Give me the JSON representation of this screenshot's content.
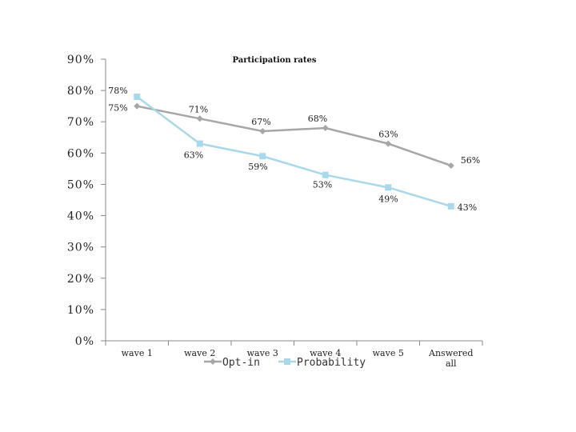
{
  "chart_data": {
    "type": "line",
    "title": "Participation rates",
    "xlabel": "",
    "ylabel": "",
    "categories": [
      "wave 1",
      "wave 2",
      "wave 3",
      "wave 4",
      "wave 5",
      "Answered all"
    ],
    "ylim": [
      0,
      90
    ],
    "yticks": [
      0,
      10,
      20,
      30,
      40,
      50,
      60,
      70,
      80,
      90
    ],
    "ytick_labels": [
      "0%",
      "10%",
      "20%",
      "30%",
      "40%",
      "50%",
      "60%",
      "70%",
      "80%",
      "90%"
    ],
    "series": [
      {
        "name": "Opt-in",
        "values": [
          75,
          71,
          67,
          68,
          63,
          56
        ],
        "labels": [
          "75%",
          "71%",
          "67%",
          "68%",
          "63%",
          "56%"
        ],
        "color": "#a6a6a6",
        "marker": "diamond"
      },
      {
        "name": "Probability",
        "values": [
          78,
          63,
          59,
          53,
          49,
          43
        ],
        "labels": [
          "78%",
          "63%",
          "59%",
          "53%",
          "49%",
          "43%"
        ],
        "color": "#a9d8ea",
        "marker": "square"
      }
    ],
    "grid": false,
    "legend": "bottom"
  }
}
